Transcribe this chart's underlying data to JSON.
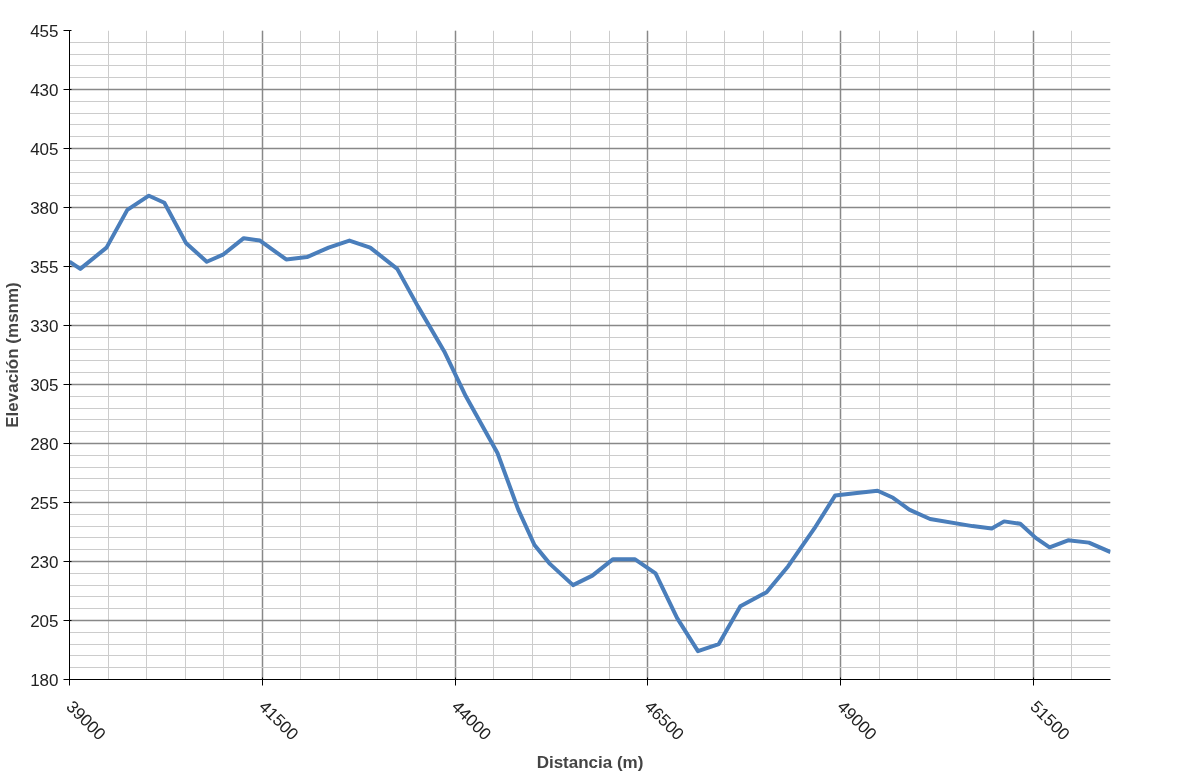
{
  "chart_data": {
    "type": "line",
    "xlabel": "Distancia (m)",
    "ylabel": "Elevación (msnm)",
    "xlim": [
      39000,
      52500
    ],
    "ylim": [
      180,
      455
    ],
    "xticks": [
      39000,
      41500,
      44000,
      46500,
      49000,
      51500
    ],
    "yticks": [
      180,
      205,
      230,
      255,
      280,
      305,
      330,
      355,
      380,
      405,
      430,
      455
    ],
    "grid": true,
    "marker": "none",
    "line_style": "solid",
    "series": [
      {
        "color": "#4a7ebb",
        "x": [
          39000,
          39140,
          39480,
          39750,
          40030,
          40230,
          40510,
          40780,
          40990,
          41260,
          41470,
          41810,
          42080,
          42360,
          42630,
          42900,
          43250,
          43520,
          43860,
          44140,
          44550,
          44820,
          45030,
          45230,
          45530,
          45780,
          46050,
          46330,
          46600,
          46880,
          47150,
          47420,
          47700,
          48040,
          48320,
          48660,
          48930,
          49210,
          49480,
          49680,
          49890,
          50160,
          50710,
          50960,
          51120,
          51330,
          51530,
          51710,
          51950,
          52220,
          52500
        ],
        "values": [
          357,
          354,
          363,
          379,
          385,
          382,
          365,
          357,
          360,
          367,
          366,
          358,
          359,
          363,
          366,
          363,
          354,
          338,
          319,
          300,
          276,
          252,
          237,
          229,
          220,
          224,
          231,
          231,
          225,
          206,
          192,
          195,
          211,
          217,
          228,
          244,
          258,
          259,
          260,
          257,
          252,
          248,
          245,
          244,
          247,
          246,
          240,
          236,
          239,
          238,
          234
        ]
      }
    ]
  }
}
